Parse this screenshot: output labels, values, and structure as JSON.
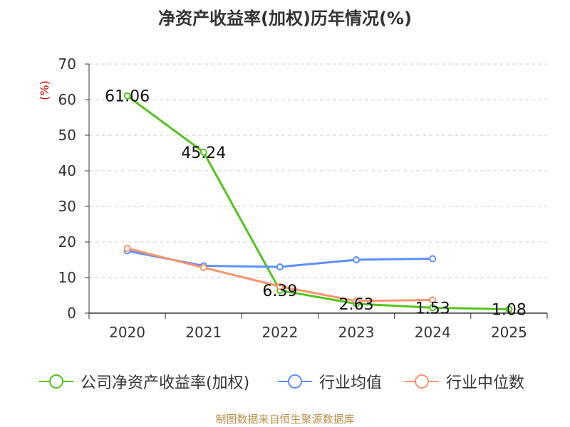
{
  "chart_data": {
    "type": "line",
    "title": "净资产收益率(加权)历年情况(%)",
    "ylabel": "(%)",
    "xlabel": "",
    "ylim": [
      0,
      70
    ],
    "yticks": [
      0,
      10,
      20,
      30,
      40,
      50,
      60,
      70
    ],
    "categories": [
      "2020",
      "2021",
      "2022",
      "2023",
      "2024",
      "2025"
    ],
    "series": [
      {
        "name": "公司净资产收益率(加权)",
        "color": "#52c41a",
        "values": [
          61.06,
          45.24,
          6.39,
          2.63,
          1.53,
          1.08
        ],
        "labels": [
          "61.06",
          "45.24",
          "6.39",
          "2.63",
          "1.53",
          "1.08"
        ]
      },
      {
        "name": "行业均值",
        "color": "#5b8ff9",
        "values": [
          17.5,
          13.3,
          13.0,
          15.0,
          15.3,
          null
        ]
      },
      {
        "name": "行业中位数",
        "color": "#f6956b",
        "values": [
          18.2,
          12.8,
          7.5,
          3.4,
          3.7,
          null
        ]
      }
    ],
    "grid": true,
    "legend": "bottom"
  },
  "source": "制图数据来自恒生聚源数据库"
}
